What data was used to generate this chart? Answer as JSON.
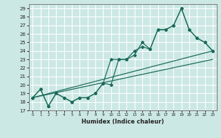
{
  "bg_color": "#cce8e4",
  "line_color": "#1a6b5a",
  "grid_color": "#ffffff",
  "xlim": [
    -0.5,
    23.5
  ],
  "ylim": [
    17,
    29.5
  ],
  "xticks": [
    0,
    1,
    2,
    3,
    4,
    5,
    6,
    7,
    8,
    9,
    10,
    11,
    12,
    13,
    14,
    15,
    16,
    17,
    18,
    19,
    20,
    21,
    22,
    23
  ],
  "yticks": [
    17,
    18,
    19,
    20,
    21,
    22,
    23,
    24,
    25,
    26,
    27,
    28,
    29
  ],
  "xlabel": "Humidex (Indice chaleur)",
  "series1_x": [
    0,
    1,
    2,
    3,
    4,
    5,
    6,
    7,
    8,
    9,
    10,
    11,
    12,
    13,
    14,
    15,
    16,
    17,
    18,
    19,
    20,
    21,
    22,
    23
  ],
  "series1_y": [
    18.5,
    19.5,
    17.5,
    19.0,
    18.5,
    18.0,
    18.5,
    18.5,
    19.0,
    20.2,
    20.0,
    23.0,
    23.0,
    23.5,
    25.0,
    24.2,
    26.5,
    26.5,
    27.0,
    29.0,
    26.5,
    25.5,
    25.0,
    24.0
  ],
  "series2_x": [
    0,
    1,
    2,
    3,
    4,
    5,
    6,
    7,
    8,
    9,
    10,
    11,
    12,
    13,
    14,
    15,
    16,
    17,
    18,
    19,
    20,
    21,
    22,
    23
  ],
  "series2_y": [
    18.5,
    19.5,
    17.5,
    19.0,
    18.5,
    18.0,
    18.5,
    18.5,
    19.0,
    20.2,
    23.0,
    23.0,
    23.0,
    24.0,
    24.5,
    24.2,
    26.5,
    26.5,
    27.0,
    29.0,
    26.5,
    25.5,
    25.0,
    24.0
  ],
  "trend1_x": [
    0,
    23
  ],
  "trend1_y": [
    18.5,
    23.0
  ],
  "trend2_x": [
    0,
    23
  ],
  "trend2_y": [
    18.5,
    24.0
  ]
}
